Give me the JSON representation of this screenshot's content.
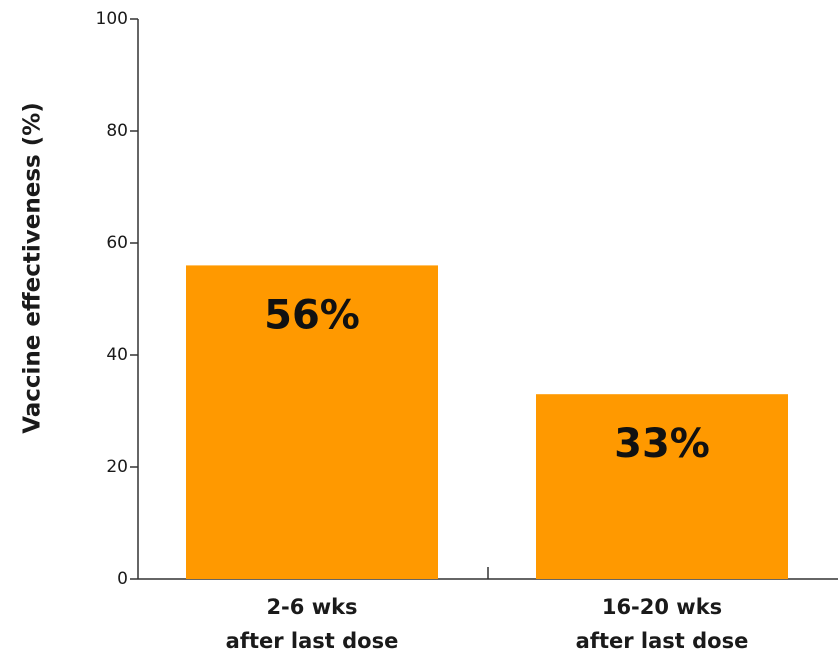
{
  "chart_data": {
    "type": "bar",
    "title": "",
    "ylabel": "Vaccine effectiveness (%)",
    "xlabel": "",
    "ylim": [
      0,
      100
    ],
    "yticks": [
      0,
      20,
      40,
      60,
      80,
      100
    ],
    "ytick_labels": [
      "0",
      "20",
      "40",
      "60",
      "80",
      "100"
    ],
    "categories": [
      [
        "2-6 wks",
        "after last dose"
      ],
      [
        "16-20 wks",
        "after last dose"
      ]
    ],
    "values": [
      56,
      33
    ],
    "data_labels": [
      "56%",
      "33%"
    ],
    "grid": false,
    "colors": {
      "bar": "#ff9900",
      "axis": "#333333",
      "text": "#1a1a1a"
    }
  }
}
